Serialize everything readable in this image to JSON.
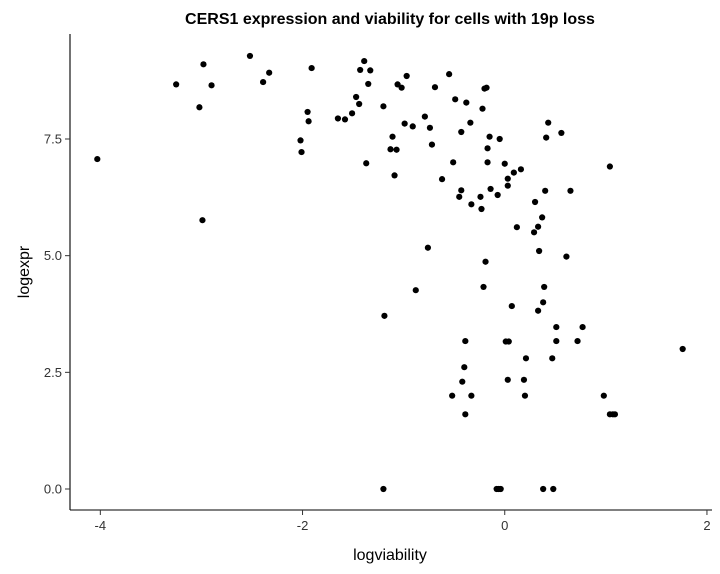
{
  "chart_data": {
    "type": "scatter",
    "title": "CERS1 expression and viability for cells with 19p loss",
    "xlabel": "logviability",
    "ylabel": "logexpr",
    "xlim": [
      -4.3,
      2.05
    ],
    "ylim": [
      -0.45,
      9.75
    ],
    "xticks": [
      -4,
      -2,
      0,
      2
    ],
    "yticks": [
      0.0,
      2.5,
      5.0,
      7.5
    ],
    "xtick_labels": [
      "-4",
      "-2",
      "0",
      "2"
    ],
    "ytick_labels": [
      "0.0",
      "2.5",
      "5.0",
      "7.5"
    ],
    "grid": false,
    "legend": "none",
    "point_color": "#000000",
    "points": [
      [
        -4.03,
        7.07
      ],
      [
        -3.25,
        8.67
      ],
      [
        -3.02,
        8.18
      ],
      [
        -2.98,
        9.1
      ],
      [
        -2.9,
        8.65
      ],
      [
        -2.99,
        5.76
      ],
      [
        -2.52,
        9.28
      ],
      [
        -2.39,
        8.72
      ],
      [
        -2.33,
        8.92
      ],
      [
        -2.02,
        7.47
      ],
      [
        -2.01,
        7.22
      ],
      [
        -1.95,
        8.08
      ],
      [
        -1.94,
        7.88
      ],
      [
        -1.91,
        9.02
      ],
      [
        -1.65,
        7.94
      ],
      [
        -1.58,
        7.92
      ],
      [
        -1.51,
        8.05
      ],
      [
        -1.47,
        8.4
      ],
      [
        -1.44,
        8.25
      ],
      [
        -1.43,
        8.98
      ],
      [
        -1.39,
        9.17
      ],
      [
        -1.33,
        8.97
      ],
      [
        -1.35,
        8.68
      ],
      [
        -1.37,
        6.98
      ],
      [
        -1.2,
        8.2
      ],
      [
        -1.13,
        7.28
      ],
      [
        -1.11,
        7.55
      ],
      [
        -1.06,
        8.67
      ],
      [
        -1.02,
        8.6
      ],
      [
        -1.07,
        7.27
      ],
      [
        -1.09,
        6.72
      ],
      [
        -0.97,
        8.85
      ],
      [
        -0.99,
        7.83
      ],
      [
        -0.91,
        7.77
      ],
      [
        -0.79,
        7.98
      ],
      [
        -0.74,
        7.74
      ],
      [
        -0.69,
        8.61
      ],
      [
        -0.72,
        7.38
      ],
      [
        -0.62,
        6.64
      ],
      [
        -0.55,
        8.89
      ],
      [
        -0.49,
        8.35
      ],
      [
        -0.38,
        8.28
      ],
      [
        -0.43,
        7.65
      ],
      [
        -0.34,
        7.85
      ],
      [
        -0.51,
        7.0
      ],
      [
        -0.43,
        6.4
      ],
      [
        -0.45,
        6.26
      ],
      [
        -0.33,
        6.1
      ],
      [
        -0.2,
        8.58
      ],
      [
        -0.18,
        8.6
      ],
      [
        -0.22,
        8.15
      ],
      [
        -0.15,
        7.55
      ],
      [
        -0.17,
        7.3
      ],
      [
        -0.17,
        7.0
      ],
      [
        -0.24,
        6.26
      ],
      [
        -0.23,
        6.0
      ],
      [
        -0.14,
        6.43
      ],
      [
        -0.07,
        6.3
      ],
      [
        -0.05,
        7.5
      ],
      [
        0.0,
        6.97
      ],
      [
        0.03,
        6.65
      ],
      [
        0.03,
        6.5
      ],
      [
        0.09,
        6.78
      ],
      [
        0.16,
        6.85
      ],
      [
        0.12,
        5.61
      ],
      [
        0.3,
        6.15
      ],
      [
        0.41,
        7.53
      ],
      [
        0.43,
        7.85
      ],
      [
        0.56,
        7.63
      ],
      [
        0.4,
        6.39
      ],
      [
        0.65,
        6.39
      ],
      [
        1.04,
        6.91
      ],
      [
        0.33,
        5.62
      ],
      [
        0.29,
        5.5
      ],
      [
        0.37,
        5.82
      ],
      [
        0.34,
        5.1
      ],
      [
        0.61,
        4.98
      ],
      [
        -0.76,
        5.17
      ],
      [
        -0.88,
        4.26
      ],
      [
        -0.19,
        4.87
      ],
      [
        -0.21,
        4.33
      ],
      [
        0.39,
        4.33
      ],
      [
        0.38,
        4.0
      ],
      [
        0.07,
        3.92
      ],
      [
        0.33,
        3.82
      ],
      [
        0.51,
        3.47
      ],
      [
        0.51,
        3.17
      ],
      [
        0.47,
        2.8
      ],
      [
        0.72,
        3.17
      ],
      [
        0.77,
        3.47
      ],
      [
        -1.19,
        3.71
      ],
      [
        -0.39,
        3.17
      ],
      [
        0.01,
        3.16
      ],
      [
        0.04,
        3.16
      ],
      [
        0.21,
        2.8
      ],
      [
        -0.4,
        2.61
      ],
      [
        -0.42,
        2.3
      ],
      [
        0.03,
        2.34
      ],
      [
        0.19,
        2.34
      ],
      [
        -0.52,
        2.0
      ],
      [
        -0.33,
        2.0
      ],
      [
        0.2,
        2.0
      ],
      [
        0.98,
        2.0
      ],
      [
        1.04,
        1.6
      ],
      [
        1.07,
        1.6
      ],
      [
        1.09,
        1.6
      ],
      [
        -0.39,
        1.6
      ],
      [
        1.76,
        3.0
      ],
      [
        -1.2,
        0.0
      ],
      [
        -0.08,
        0.0
      ],
      [
        -0.06,
        0.0
      ],
      [
        -0.04,
        0.0
      ],
      [
        0.38,
        0.0
      ],
      [
        0.48,
        0.0
      ]
    ]
  }
}
